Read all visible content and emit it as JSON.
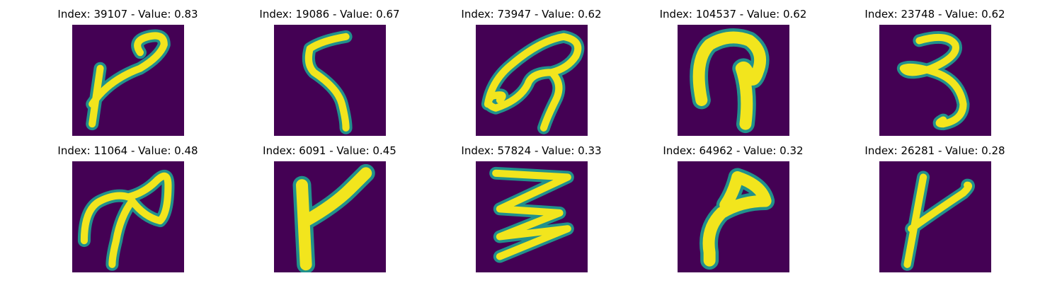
{
  "colors": {
    "background": "#440154",
    "stroke_core": "#f2e51d",
    "stroke_mid": "#5ec962",
    "stroke_edge": "#21918c"
  },
  "samples": [
    {
      "label": "Index: 39107 - Value: 0.83",
      "index": "39107",
      "value": 0.83
    },
    {
      "label": "Index: 19086 - Value: 0.67",
      "index": "19086",
      "value": 0.67
    },
    {
      "label": "Index: 73947 - Value: 0.62",
      "index": "73947",
      "value": 0.62
    },
    {
      "label": "Index: 104537 - Value: 0.62",
      "index": "104537",
      "value": 0.62
    },
    {
      "label": "Index: 23748 - Value: 0.62",
      "index": "23748",
      "value": 0.62
    },
    {
      "label": "Index: 11064 - Value: 0.48",
      "index": "11064",
      "value": 0.48
    },
    {
      "label": "Index: 6091 - Value: 0.45",
      "index": "6091",
      "value": 0.45
    },
    {
      "label": "Index: 57824 - Value: 0.33",
      "index": "57824",
      "value": 0.33
    },
    {
      "label": "Index: 64962 - Value: 0.32",
      "index": "64962",
      "value": 0.32
    },
    {
      "label": "Index: 26281 - Value: 0.28",
      "index": "26281",
      "value": 0.28
    }
  ]
}
